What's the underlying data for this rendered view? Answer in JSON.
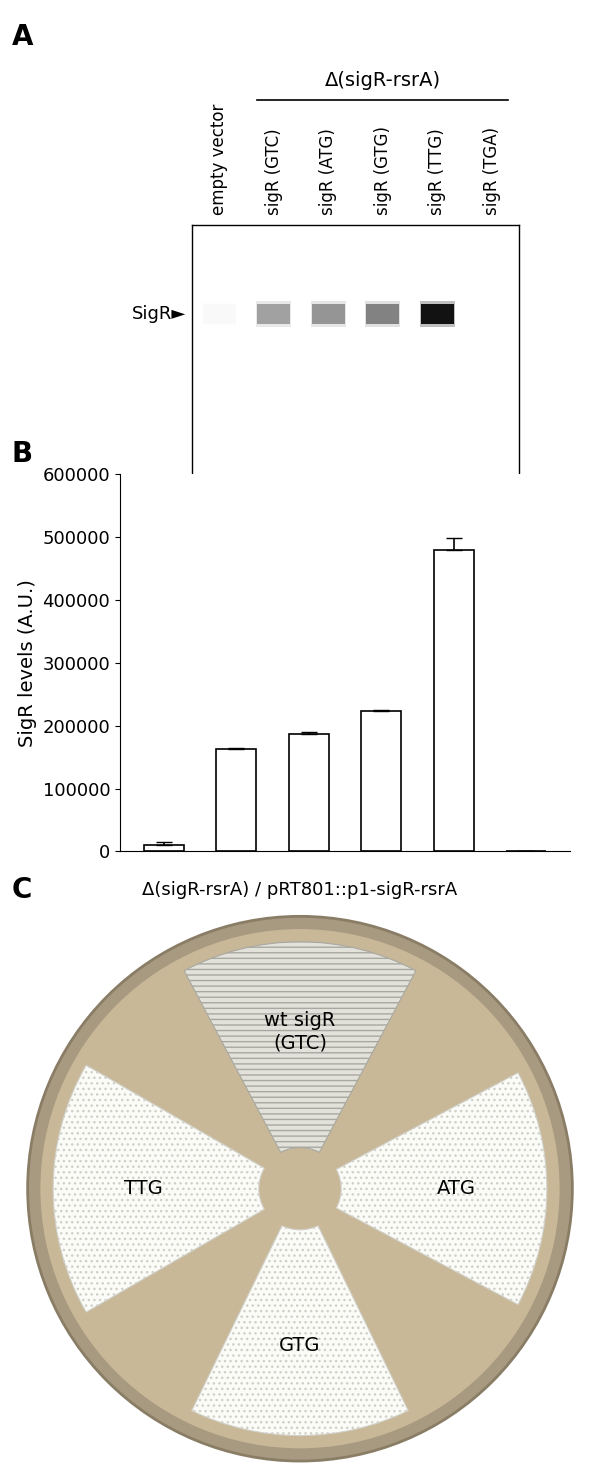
{
  "panel_labels": [
    "A",
    "B",
    "C"
  ],
  "blot": {
    "group_label": "Δ(sigR-rsrA)",
    "lanes": [
      "empty vector",
      "sigR (GTC)",
      "sigR (ATG)",
      "sigR (GTG)",
      "sigR (TTG)",
      "sigR (TGA)"
    ],
    "band_label": "SigR►"
  },
  "chart_data": {
    "type": "bar",
    "categories": [
      null,
      null,
      null,
      null,
      null,
      null
    ],
    "values": [
      10000,
      163000,
      187000,
      224000,
      480000,
      0
    ],
    "error": [
      5000,
      2000,
      3000,
      1000,
      18000,
      0
    ],
    "ylabel": "SigR levels (A.U.)",
    "ylim": [
      0,
      600000
    ],
    "yticks": [
      0,
      100000,
      200000,
      300000,
      400000,
      500000,
      600000
    ],
    "color": "#ffffff",
    "tick_labels": "y"
  },
  "plate": {
    "title": "Δ(sigR-rsrA) / pRT801::p1-sigR-rsrA",
    "streaks": [
      "wt sigR\n(GTC)",
      "TTG",
      "ATG",
      "GTG"
    ]
  }
}
